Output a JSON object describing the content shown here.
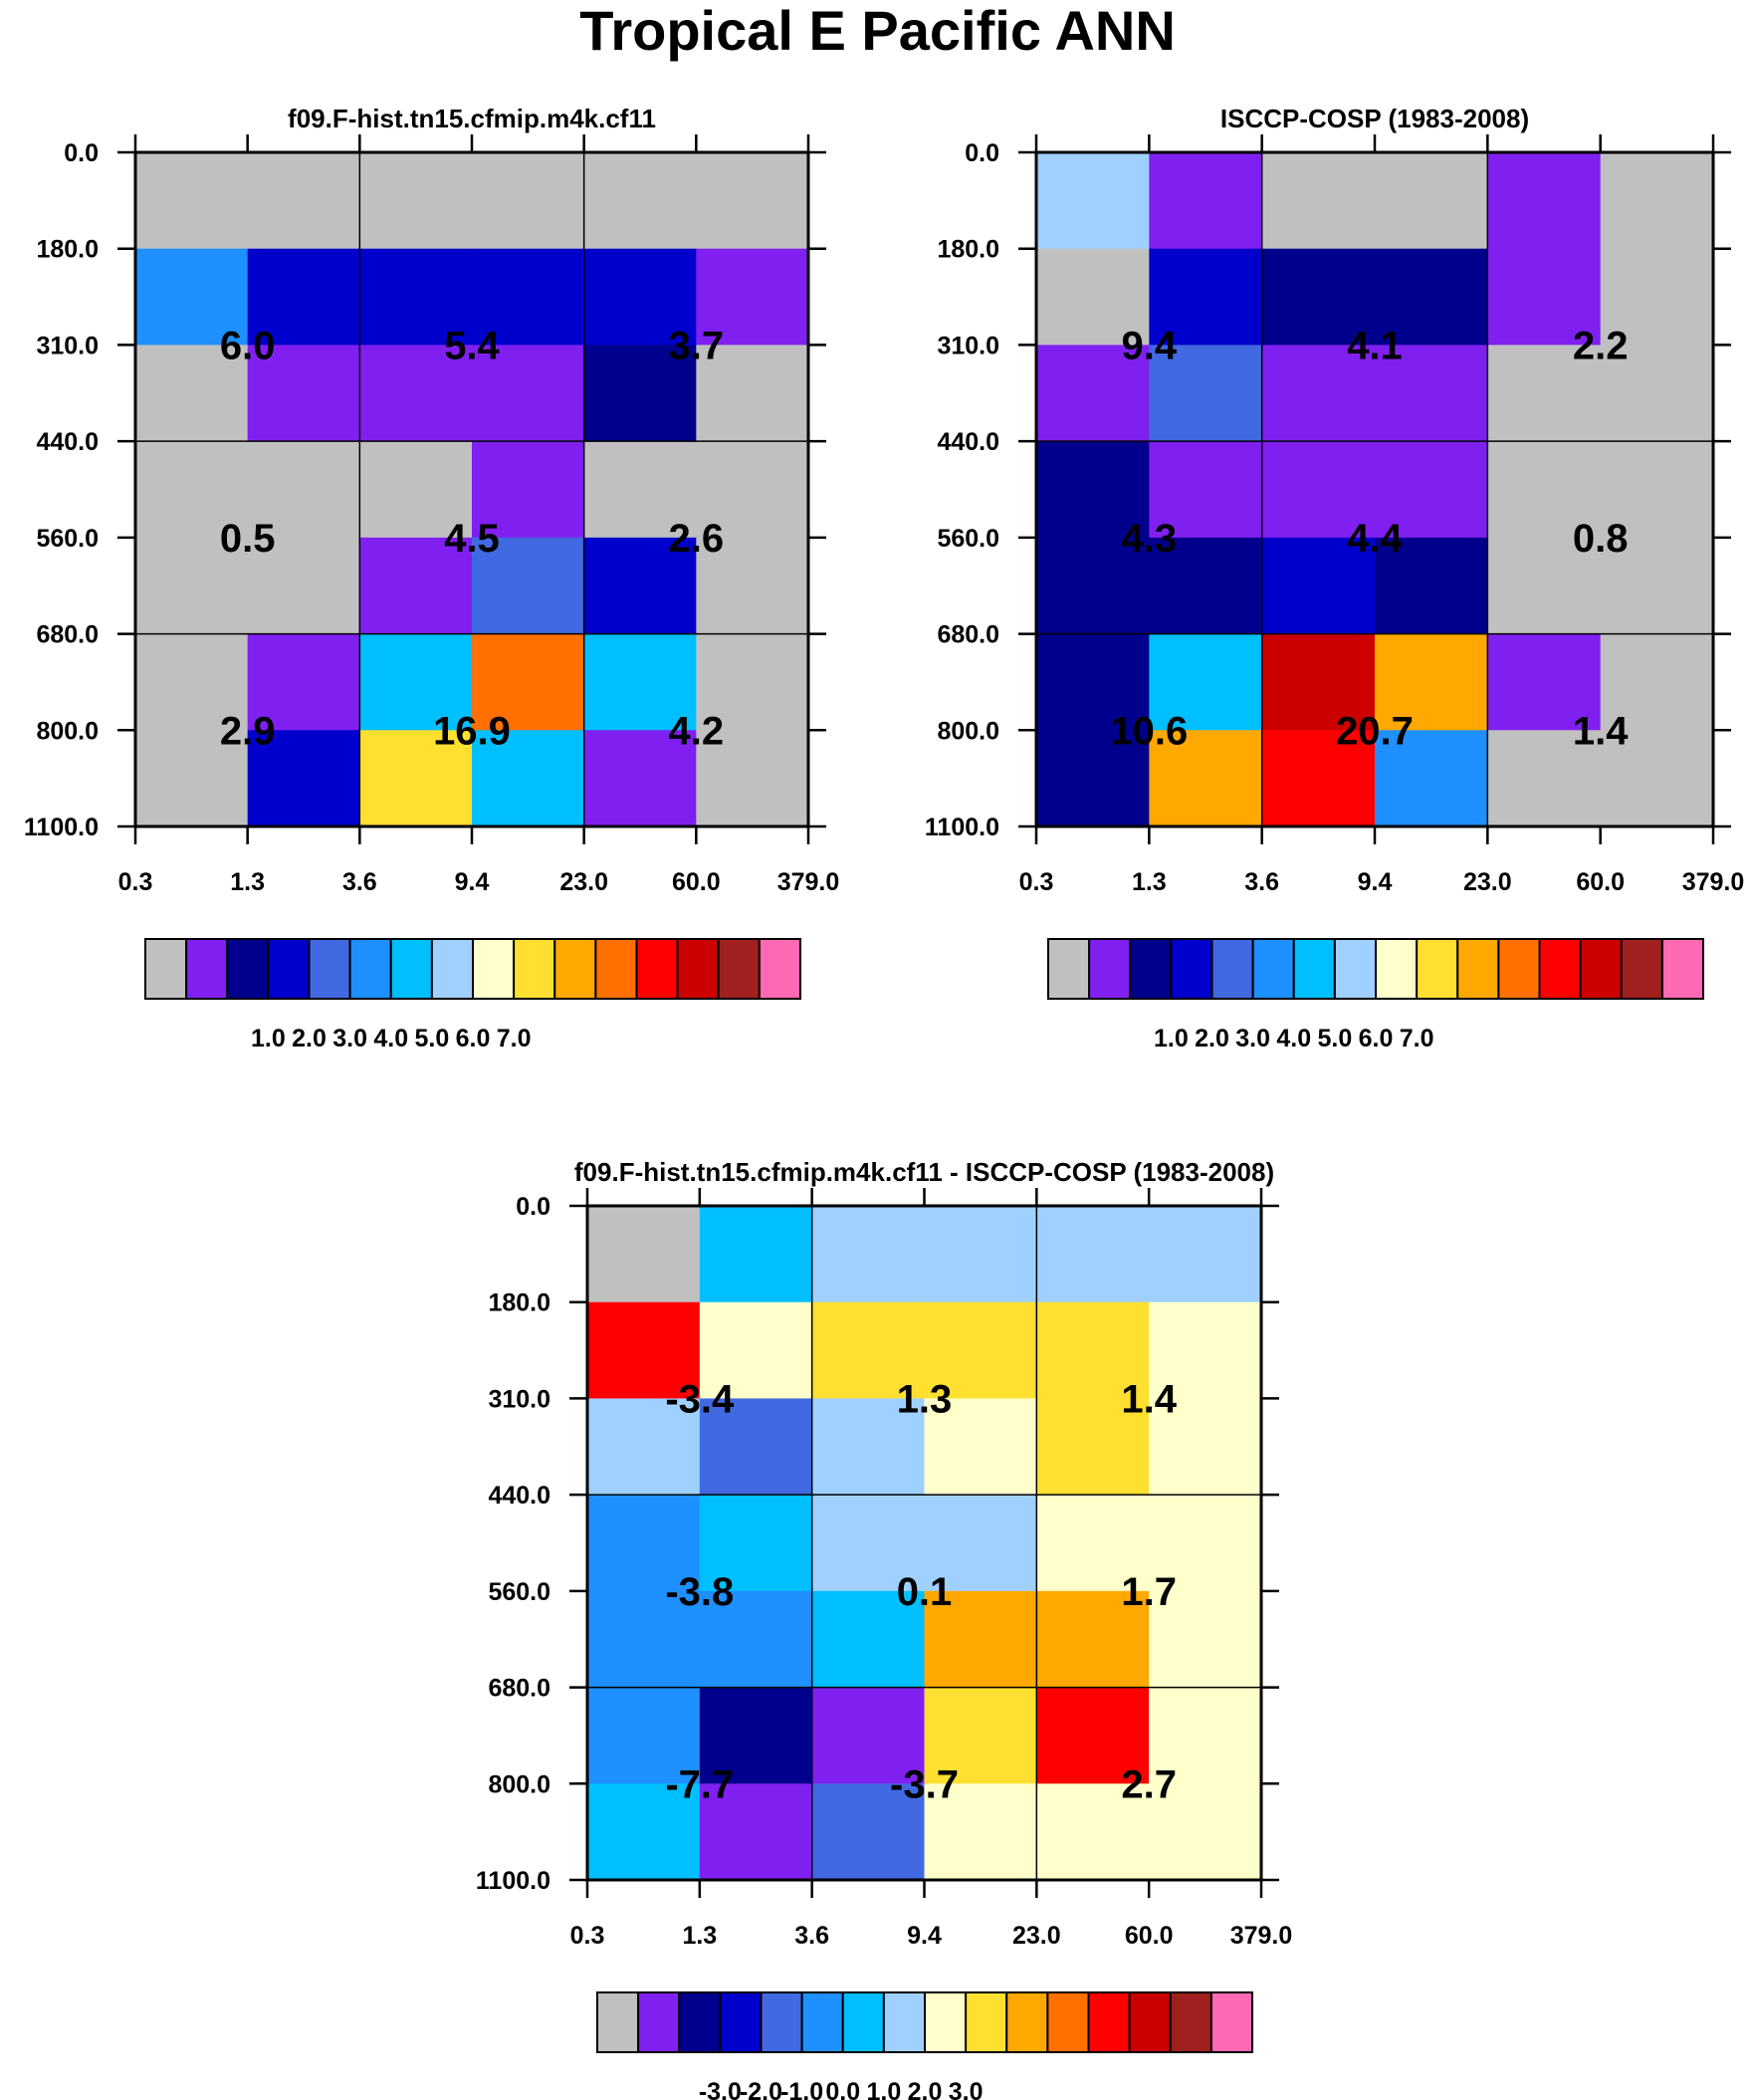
{
  "title": "Tropical E Pacific ANN",
  "colors": {
    "palette": [
      "#c0c0c0",
      "#8020f0",
      "#00008c",
      "#0000cd",
      "#4169e1",
      "#1e90ff",
      "#00bfff",
      "#a0d0ff",
      "#ffffcc",
      "#ffe030",
      "#ffa800",
      "#ff7000",
      "#ff0000",
      "#cc0000",
      "#a02020",
      "#ff69b4"
    ]
  },
  "chart_data": [
    {
      "type": "heatmap",
      "title": "f09.F-hist.tn15.cfmip.m4k.cf11",
      "x_ticks": [
        "0.3",
        "1.3",
        "3.6",
        "9.4",
        "23.0",
        "60.0",
        "379.0"
      ],
      "y_ticks": [
        "0.0",
        "180.0",
        "310.0",
        "440.0",
        "560.0",
        "680.0",
        "800.0",
        "1100.0"
      ],
      "cells": [
        [
          0,
          0,
          0,
          0,
          0,
          0
        ],
        [
          5,
          3,
          3,
          3,
          3,
          1
        ],
        [
          0,
          1,
          1,
          1,
          2,
          0
        ],
        [
          0,
          0,
          0,
          1,
          0,
          0
        ],
        [
          0,
          0,
          1,
          4,
          3,
          0
        ],
        [
          0,
          1,
          6,
          11,
          6,
          0
        ],
        [
          0,
          3,
          9,
          6,
          1,
          0
        ]
      ],
      "labels": [
        [
          "6.0",
          "5.4",
          "3.7"
        ],
        [
          "0.5",
          "4.5",
          "2.6"
        ],
        [
          "2.9",
          "16.9",
          "4.2"
        ]
      ],
      "colorbar_labels": [
        "1.0",
        "2.0",
        "3.0",
        "4.0",
        "5.0",
        "6.0",
        "7.0"
      ]
    },
    {
      "type": "heatmap",
      "title": "ISCCP-COSP (1983-2008)",
      "x_ticks": [
        "0.3",
        "1.3",
        "3.6",
        "9.4",
        "23.0",
        "60.0",
        "379.0"
      ],
      "y_ticks": [
        "0.0",
        "180.0",
        "310.0",
        "440.0",
        "560.0",
        "680.0",
        "800.0",
        "1100.0"
      ],
      "cells": [
        [
          7,
          1,
          0,
          0,
          1,
          0
        ],
        [
          0,
          3,
          2,
          2,
          1,
          0
        ],
        [
          1,
          4,
          1,
          1,
          0,
          0
        ],
        [
          2,
          1,
          1,
          1,
          0,
          0
        ],
        [
          2,
          2,
          3,
          2,
          0,
          0
        ],
        [
          2,
          6,
          13,
          10,
          1,
          0
        ],
        [
          2,
          10,
          12,
          5,
          0,
          0
        ]
      ],
      "labels": [
        [
          "9.4",
          "4.1",
          "2.2"
        ],
        [
          "4.3",
          "4.4",
          "0.8"
        ],
        [
          "10.6",
          "20.7",
          "1.4"
        ]
      ],
      "colorbar_labels": [
        "1.0",
        "2.0",
        "3.0",
        "4.0",
        "5.0",
        "6.0",
        "7.0"
      ]
    },
    {
      "type": "heatmap",
      "title": "f09.F-hist.tn15.cfmip.m4k.cf11 - ISCCP-COSP (1983-2008)",
      "x_ticks": [
        "0.3",
        "1.3",
        "3.6",
        "9.4",
        "23.0",
        "60.0",
        "379.0"
      ],
      "y_ticks": [
        "0.0",
        "180.0",
        "310.0",
        "440.0",
        "560.0",
        "680.0",
        "800.0",
        "1100.0"
      ],
      "cells": [
        [
          0,
          6,
          7,
          7,
          7,
          7
        ],
        [
          12,
          8,
          9,
          9,
          9,
          8
        ],
        [
          7,
          4,
          7,
          8,
          9,
          8
        ],
        [
          5,
          6,
          7,
          7,
          8,
          8
        ],
        [
          5,
          5,
          6,
          10,
          10,
          8
        ],
        [
          5,
          2,
          1,
          9,
          12,
          8
        ],
        [
          6,
          1,
          4,
          8,
          8,
          8
        ]
      ],
      "labels": [
        [
          "-3.4",
          "1.3",
          "1.4"
        ],
        [
          "-3.8",
          "0.1",
          "1.7"
        ],
        [
          "-7.7",
          "-3.7",
          "2.7"
        ]
      ],
      "colorbar_labels": [
        "-3.0",
        "-2.0",
        "-1.0",
        "0.0",
        "1.0",
        "2.0",
        "3.0"
      ]
    }
  ]
}
